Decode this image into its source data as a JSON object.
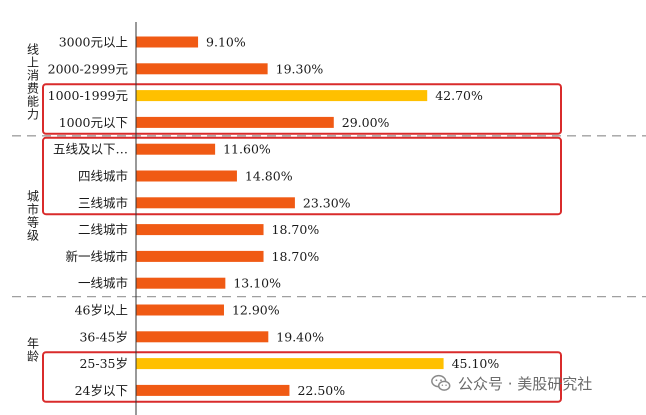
{
  "chart_data": {
    "type": "bar",
    "orientation": "horizontal",
    "title": "",
    "xlabel": "",
    "ylabel": "",
    "xlim": [
      0,
      50
    ],
    "grid": false,
    "groups": [
      {
        "name": "线上消费能力",
        "categories": [
          "3000元以上",
          "2000-2999元",
          "1000-1999元",
          "1000元以下"
        ]
      },
      {
        "name": "城市等级",
        "categories": [
          "五线及以下…",
          "四线城市",
          "三线城市",
          "二线城市",
          "新一线城市",
          "一线城市"
        ]
      },
      {
        "name": "年龄",
        "categories": [
          "46岁以上",
          "36-45岁",
          "25-35岁",
          "24岁以下"
        ]
      }
    ],
    "categories": [
      "3000元以上",
      "2000-2999元",
      "1000-1999元",
      "1000元以下",
      "五线及以下…",
      "四线城市",
      "三线城市",
      "二线城市",
      "新一线城市",
      "一线城市",
      "46岁以上",
      "36-45岁",
      "25-35岁",
      "24岁以下"
    ],
    "values": [
      9.1,
      19.3,
      42.7,
      29.0,
      11.6,
      14.8,
      23.3,
      18.7,
      18.7,
      13.1,
      12.9,
      19.4,
      45.1,
      22.5
    ],
    "value_labels": [
      "9.10%",
      "19.30%",
      "42.70%",
      "29.00%",
      "11.60%",
      "14.80%",
      "23.30%",
      "18.70%",
      "18.70%",
      "13.10%",
      "12.90%",
      "19.40%",
      "45.10%",
      "22.50%"
    ],
    "highlighted": [
      "1000-1999元",
      "25-35岁"
    ],
    "boxed": [
      [
        "1000-1999元",
        "1000元以下"
      ],
      [
        "五线及以下…",
        "四线城市",
        "三线城市"
      ],
      [
        "25-35岁",
        "24岁以下"
      ]
    ],
    "colors": {
      "bar": "#f05a14",
      "highlight": "#ffc000",
      "box": "#d92b2b",
      "separator": "#a0a0a0"
    }
  },
  "watermark": {
    "icon": "wechat-icon",
    "text": "公众号 · 美股研究社"
  }
}
